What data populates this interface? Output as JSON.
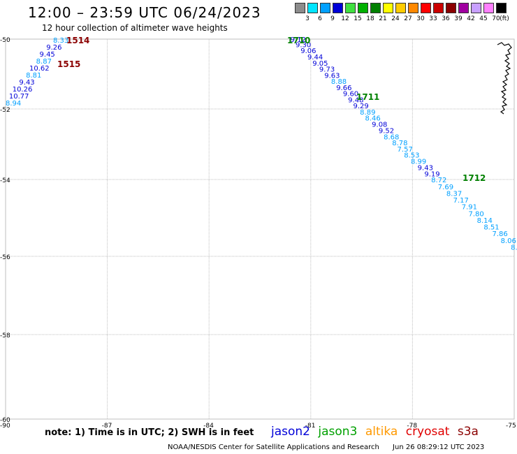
{
  "header": {
    "title": "12:00 – 23:59 UTC 06/24/2023",
    "subtitle": "12 hour collection of altimeter wave heights"
  },
  "scale": {
    "unit": "(ft)",
    "items": [
      {
        "label": "3",
        "color": "#8c8c8c"
      },
      {
        "label": "6",
        "color": "#00e5ff"
      },
      {
        "label": "9",
        "color": "#00a0ff"
      },
      {
        "label": "12",
        "color": "#0000d8"
      },
      {
        "label": "15",
        "color": "#40e040"
      },
      {
        "label": "18",
        "color": "#00b000"
      },
      {
        "label": "21",
        "color": "#008000"
      },
      {
        "label": "24",
        "color": "#ffff00"
      },
      {
        "label": "27",
        "color": "#ffcc00"
      },
      {
        "label": "30",
        "color": "#ff8800"
      },
      {
        "label": "33",
        "color": "#ff0000"
      },
      {
        "label": "36",
        "color": "#cc0000"
      },
      {
        "label": "39",
        "color": "#8b0000"
      },
      {
        "label": "42",
        "color": "#a000a0"
      },
      {
        "label": "45",
        "color": "#c8a0ff"
      },
      {
        "label": "70",
        "color": "#ff80ff"
      },
      {
        "label": "",
        "color": "#000000"
      }
    ]
  },
  "map": {
    "lat_labels": [
      "-50",
      "-52",
      "-54",
      "-56",
      "-58",
      "-60"
    ],
    "lon_labels": [
      "-90",
      "-87",
      "-84",
      "-81",
      "-78",
      "-75"
    ],
    "grid_color": "#bfbfbf",
    "tracks": [
      {
        "id": "1514",
        "color": "#8b0000",
        "points": [
          {
            "lon": -88.6,
            "lat": -50.02,
            "v": "8.33",
            "c": "#00a0ff"
          },
          {
            "lon": -88.8,
            "lat": -50.22,
            "v": "9.26",
            "c": "#0000d8"
          },
          {
            "lon": -89.0,
            "lat": -50.42,
            "v": "9.45",
            "c": "#0000d8"
          },
          {
            "lon": -89.1,
            "lat": -50.62,
            "v": "8.87",
            "c": "#00a0ff"
          },
          {
            "lon": -89.3,
            "lat": -50.82,
            "v": "10.62",
            "c": "#0000d8"
          },
          {
            "lon": -89.4,
            "lat": -51.02,
            "v": "8.81",
            "c": "#00a0ff"
          },
          {
            "lon": -89.6,
            "lat": -51.22,
            "v": "9.43",
            "c": "#0000d8"
          },
          {
            "lon": -89.8,
            "lat": -51.42,
            "v": "10.26",
            "c": "#0000d8"
          },
          {
            "lon": -89.9,
            "lat": -51.62,
            "v": "10.77",
            "c": "#0000d8"
          },
          {
            "lon": -90.0,
            "lat": -51.82,
            "v": "8.94",
            "c": "#00a0ff"
          }
        ]
      },
      {
        "id": "1710",
        "color": "#008000",
        "points": [
          {
            "lon": -81.6,
            "lat": -50.0,
            "v": "9.12",
            "c": "#0000d8"
          },
          {
            "lon": -81.45,
            "lat": -50.15,
            "v": "9.30",
            "c": "#0000d8"
          },
          {
            "lon": -81.3,
            "lat": -50.32,
            "v": "9.06",
            "c": "#0000d8"
          },
          {
            "lon": -81.1,
            "lat": -50.5,
            "v": "9.44",
            "c": "#0000d8"
          },
          {
            "lon": -80.95,
            "lat": -50.68,
            "v": "9.05",
            "c": "#0000d8"
          },
          {
            "lon": -80.75,
            "lat": -50.85,
            "v": "9.73",
            "c": "#0000d8"
          },
          {
            "lon": -80.6,
            "lat": -51.03,
            "v": "9.63",
            "c": "#0000d8"
          },
          {
            "lon": -80.4,
            "lat": -51.2,
            "v": "8.88",
            "c": "#00a0ff"
          },
          {
            "lon": -80.25,
            "lat": -51.38,
            "v": "9.66",
            "c": "#0000d8"
          },
          {
            "lon": -80.05,
            "lat": -51.55,
            "v": "9.60",
            "c": "#0000d8"
          }
        ]
      },
      {
        "id": "1711",
        "color": "#008000",
        "points": [
          {
            "lon": -79.9,
            "lat": -51.73,
            "v": "9.48",
            "c": "#0000d8"
          },
          {
            "lon": -79.75,
            "lat": -51.9,
            "v": "9.29",
            "c": "#0000d8"
          },
          {
            "lon": -79.55,
            "lat": -52.08,
            "v": "8.89",
            "c": "#00a0ff"
          },
          {
            "lon": -79.4,
            "lat": -52.25,
            "v": "8.46",
            "c": "#00a0ff"
          },
          {
            "lon": -79.2,
            "lat": -52.43,
            "v": "9.08",
            "c": "#0000d8"
          },
          {
            "lon": -79.0,
            "lat": -52.6,
            "v": "9.52",
            "c": "#0000d8"
          },
          {
            "lon": -78.85,
            "lat": -52.78,
            "v": "8.68",
            "c": "#00a0ff"
          },
          {
            "lon": -78.6,
            "lat": -52.95,
            "v": "8.78",
            "c": "#00a0ff"
          },
          {
            "lon": -78.45,
            "lat": -53.13,
            "v": "7.57",
            "c": "#00a0ff"
          },
          {
            "lon": -78.25,
            "lat": -53.3,
            "v": "8.53",
            "c": "#00a0ff"
          },
          {
            "lon": -78.05,
            "lat": -53.48,
            "v": "8.99",
            "c": "#00a0ff"
          },
          {
            "lon": -77.85,
            "lat": -53.65,
            "v": "9.43",
            "c": "#0000d8"
          },
          {
            "lon": -77.65,
            "lat": -53.83,
            "v": "9.19",
            "c": "#0000d8"
          }
        ]
      },
      {
        "id": "1712",
        "color": "#008000",
        "points": [
          {
            "lon": -77.45,
            "lat": -54.0,
            "v": "8.72",
            "c": "#00a0ff"
          },
          {
            "lon": -77.25,
            "lat": -54.18,
            "v": "7.69",
            "c": "#00a0ff"
          },
          {
            "lon": -77.0,
            "lat": -54.35,
            "v": "8.37",
            "c": "#00a0ff"
          },
          {
            "lon": -76.8,
            "lat": -54.53,
            "v": "7.17",
            "c": "#00a0ff"
          },
          {
            "lon": -76.55,
            "lat": -54.7,
            "v": "7.91",
            "c": "#00a0ff"
          },
          {
            "lon": -76.35,
            "lat": -54.88,
            "v": "7.80",
            "c": "#00a0ff"
          },
          {
            "lon": -76.1,
            "lat": -55.05,
            "v": "8.14",
            "c": "#00a0ff"
          },
          {
            "lon": -75.9,
            "lat": -55.23,
            "v": "8.51",
            "c": "#00a0ff"
          },
          {
            "lon": -75.65,
            "lat": -55.4,
            "v": "7.86",
            "c": "#00a0ff"
          },
          {
            "lon": -75.4,
            "lat": -55.58,
            "v": "8.06",
            "c": "#00a0ff"
          },
          {
            "lon": -75.1,
            "lat": -55.75,
            "v": "8.",
            "c": "#00a0ff"
          }
        ]
      }
    ],
    "track_label_1515": {
      "text": "1515",
      "color": "#8b0000"
    }
  },
  "note": "note: 1) Time is in UTC; 2) SWH is in feet",
  "legend": [
    {
      "name": "jason2",
      "color": "#0000d8"
    },
    {
      "name": "jason3",
      "color": "#00a000"
    },
    {
      "name": "altika",
      "color": "#ff9900"
    },
    {
      "name": "cryosat",
      "color": "#e00000"
    },
    {
      "name": "s3a",
      "color": "#8b0000"
    }
  ],
  "footer": {
    "credit": "NOAA/NESDIS Center for Satellite Applications and Research",
    "timestamp": "Jun 26 08:29:12 UTC 2023"
  }
}
